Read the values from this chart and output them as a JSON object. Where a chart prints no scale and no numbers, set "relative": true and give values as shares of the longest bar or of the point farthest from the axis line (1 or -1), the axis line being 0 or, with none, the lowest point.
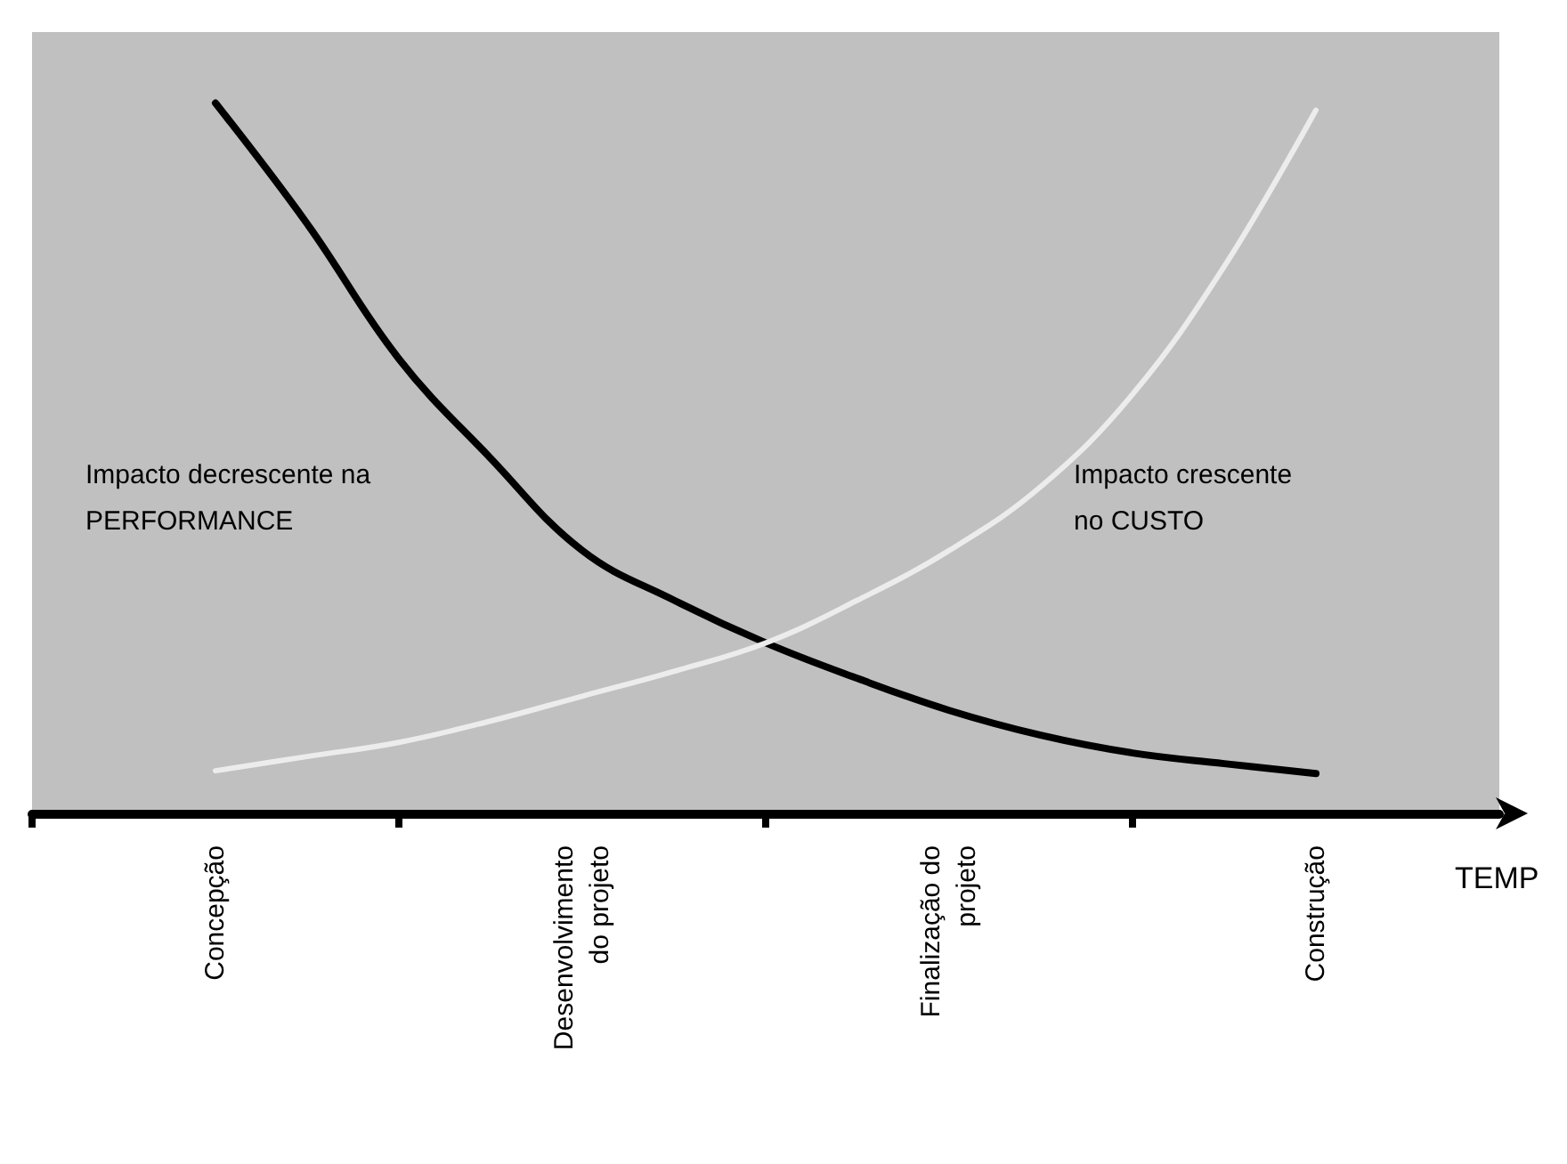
{
  "chart_data": {
    "type": "line",
    "relative": true,
    "xlabel": "TEMP",
    "categories": [
      null,
      null,
      "Concepção",
      null,
      null,
      null,
      "Desenvolvimento\ndo projeto",
      null,
      null,
      null,
      "Finalização do\nprojeto",
      null,
      null,
      null,
      "Construção",
      null,
      null
    ],
    "series": [
      {
        "color": "#000000",
        "values": [
          null,
          null,
          1,
          0.83,
          0.64,
          0.5,
          0.37,
          0.3,
          0.24,
          0.19,
          0.145,
          0.11,
          0.085,
          0.07,
          0.056,
          null,
          null
        ]
      },
      {
        "color": "#ececec",
        "values": [
          null,
          null,
          0.06,
          0.08,
          0.1,
          0.13,
          0.165,
          0.2,
          0.24,
          0.3,
          0.37,
          0.46,
          0.59,
          0.77,
          0.99,
          null,
          null
        ]
      }
    ],
    "annotations": [
      "Impacto decrescente na\nPERFORMANCE",
      "Impacto crescente\nno CUSTO"
    ],
    "marker": "none",
    "line_style": "solid",
    "grid": false
  }
}
